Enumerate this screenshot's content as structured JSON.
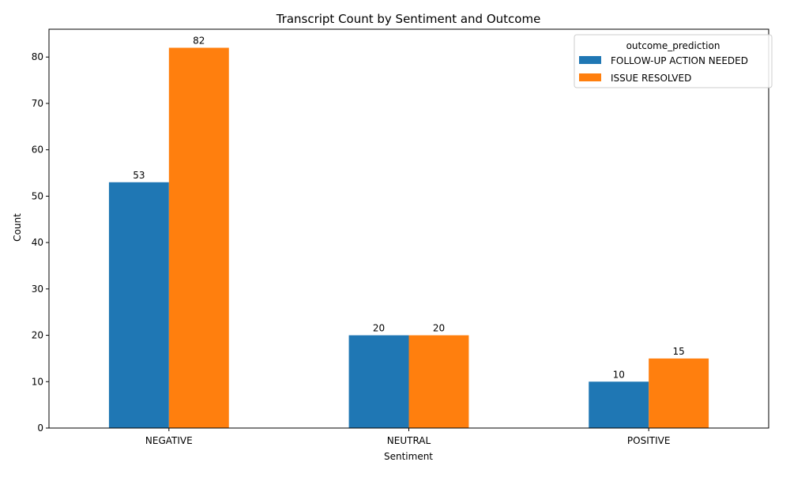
{
  "chart_data": {
    "type": "bar",
    "title": "Transcript Count by Sentiment and Outcome",
    "xlabel": "Sentiment",
    "ylabel": "Count",
    "categories": [
      "NEGATIVE",
      "NEUTRAL",
      "POSITIVE"
    ],
    "ylim": [
      0,
      86
    ],
    "yticks": [
      0,
      10,
      20,
      30,
      40,
      50,
      60,
      70,
      80
    ],
    "grid": false,
    "legend": {
      "title": "outcome_prediction",
      "placement": "top-right"
    },
    "series": [
      {
        "name": "FOLLOW-UP ACTION NEEDED",
        "color": "#1f77b4",
        "values": [
          53,
          20,
          10
        ]
      },
      {
        "name": "ISSUE RESOLVED",
        "color": "#ff7f0e",
        "values": [
          82,
          20,
          15
        ]
      }
    ]
  }
}
